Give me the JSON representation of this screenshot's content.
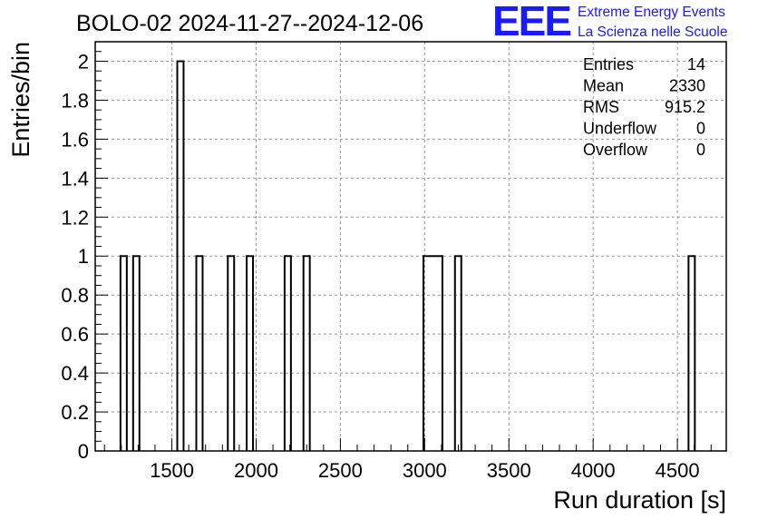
{
  "chart_data": {
    "type": "bar",
    "title": "BOLO-02 2024-11-27--2024-12-06",
    "xlabel": "Run duration [s]",
    "ylabel": "Entries/bin",
    "xlim": [
      1045,
      4790
    ],
    "ylim": [
      0,
      2.1
    ],
    "bin_width": 37.45,
    "xticks": [
      1500,
      2000,
      2500,
      3000,
      3500,
      4000,
      4500
    ],
    "yticks": [
      0,
      0.2,
      0.4,
      0.6,
      0.8,
      1,
      1.2,
      1.4,
      1.6,
      1.8,
      2
    ],
    "ytick_labels": [
      "0",
      "0.2",
      "0.4",
      "0.6",
      "0.8",
      "1",
      "1.2",
      "1.4",
      "1.6",
      "1.8",
      "2"
    ],
    "grid": true,
    "bins": [
      {
        "x": 1195,
        "value": 1
      },
      {
        "x": 1270,
        "value": 1
      },
      {
        "x": 1532,
        "value": 2
      },
      {
        "x": 1645,
        "value": 1
      },
      {
        "x": 1832,
        "value": 1
      },
      {
        "x": 1944,
        "value": 1
      },
      {
        "x": 2169,
        "value": 1
      },
      {
        "x": 2281,
        "value": 1
      },
      {
        "x": 2993,
        "value": 1
      },
      {
        "x": 3030,
        "value": 1
      },
      {
        "x": 3068,
        "value": 1
      },
      {
        "x": 3180,
        "value": 1
      },
      {
        "x": 4566,
        "value": 1
      }
    ],
    "stats": [
      {
        "label": "Entries",
        "value": "14"
      },
      {
        "label": "Mean",
        "value": "2330"
      },
      {
        "label": "RMS",
        "value": "915.2"
      },
      {
        "label": "Underflow",
        "value": "0"
      },
      {
        "label": "Overflow",
        "value": "0"
      }
    ]
  },
  "logo": {
    "mark": "EEE",
    "line1": "Extreme Energy Events",
    "line2": "La Scienza nelle Scuole"
  },
  "colors": {
    "logo": "#1a1aff",
    "histogram": "#000000",
    "grid": "#999999"
  }
}
